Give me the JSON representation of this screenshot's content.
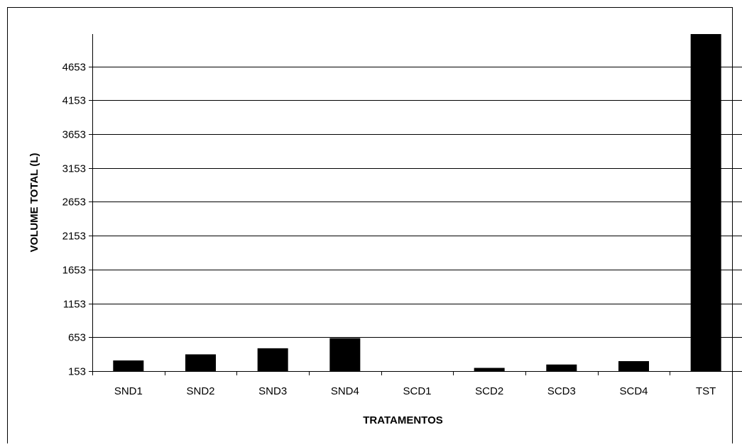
{
  "chart_data": {
    "type": "bar",
    "title": "",
    "xlabel": "TRATAMENTOS",
    "ylabel": "VOLUME TOTAL (L)",
    "categories": [
      "SND1",
      "SND2",
      "SND3",
      "SND4",
      "SCD1",
      "SCD2",
      "SCD3",
      "SCD4",
      "TST"
    ],
    "values": [
      310,
      400,
      490,
      640,
      153,
      200,
      250,
      300,
      5130
    ],
    "yticks": [
      153,
      653,
      1153,
      1653,
      2153,
      2653,
      3153,
      3653,
      4153,
      4653
    ],
    "ylim": [
      153,
      5130
    ],
    "grid": true,
    "legend": "none",
    "bar_color": "#000000"
  }
}
